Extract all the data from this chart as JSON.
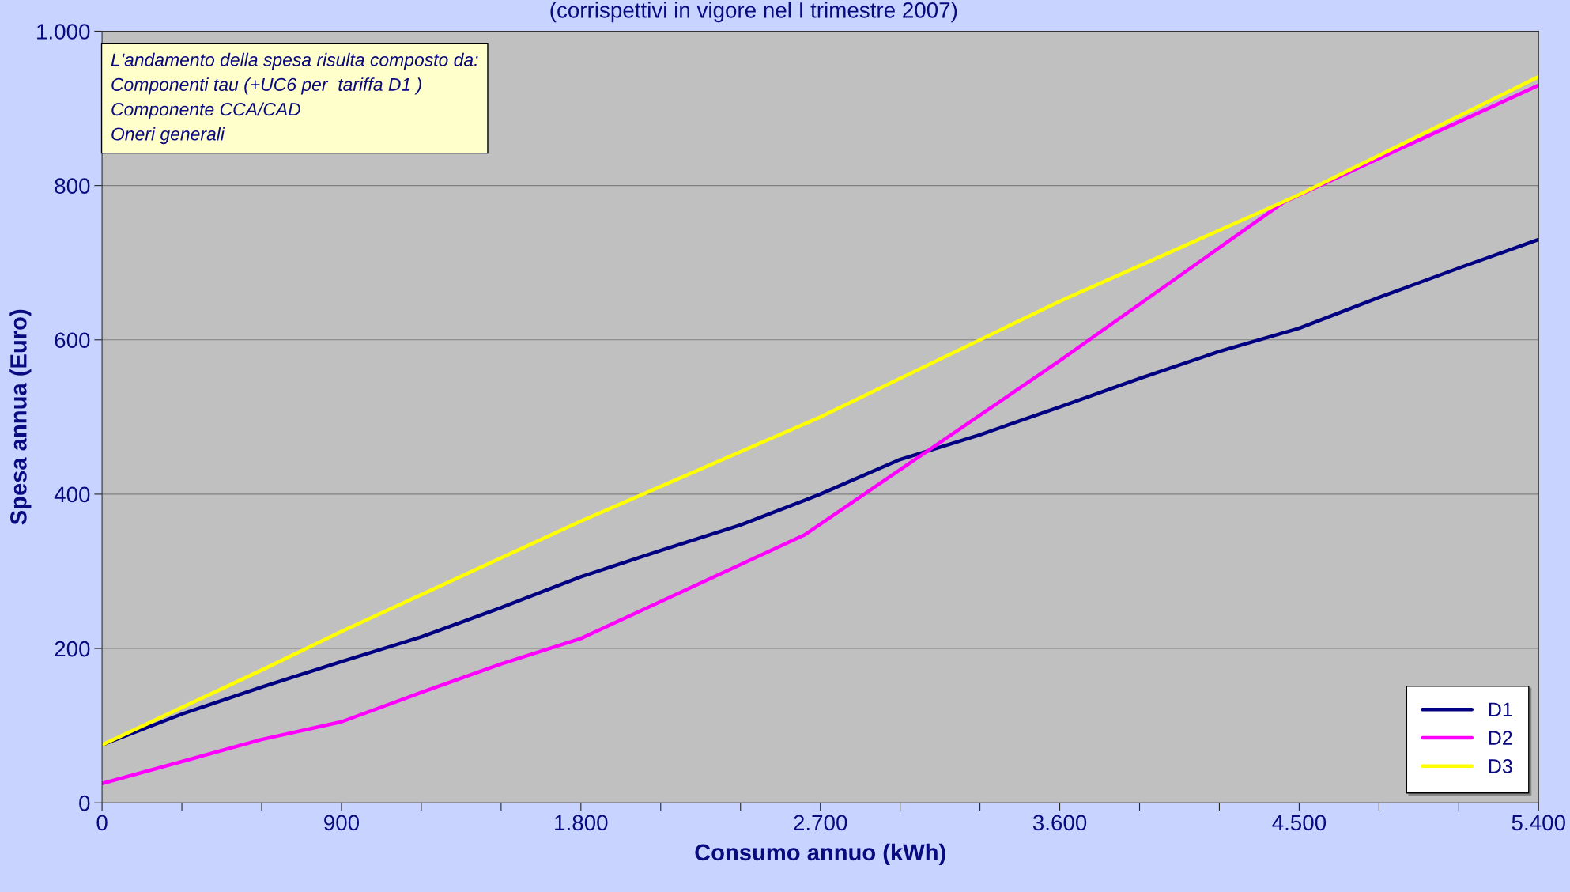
{
  "chart_data": {
    "type": "line",
    "subtitle": "(corrispettivi in vigore nel I trimestre 2007)",
    "xlabel": "Consumo annuo (kWh)",
    "ylabel": "Spesa annua (Euro)",
    "annotations": [
      "L'andamento della spesa risulta composto da:\nComponenti tau (+UC6 per  tariffa D1 )\nComponente CCA/CAD\nOneri generali"
    ],
    "series": [
      {
        "name": "D1",
        "color": "#000080",
        "x": [
          0,
          300,
          600,
          900,
          1200,
          1500,
          1800,
          2100,
          2400,
          2700,
          3000,
          3300,
          3600,
          3900,
          4200,
          4500,
          4800,
          5100,
          5400
        ],
        "values": [
          75,
          115,
          150,
          183,
          215,
          253,
          293,
          327,
          360,
          400,
          445,
          477,
          513,
          550,
          585,
          615,
          655,
          693,
          730
        ]
      },
      {
        "name": "D2",
        "color": "#ff00ff",
        "x": [
          0,
          600,
          900,
          1200,
          1500,
          1800,
          2640,
          3600,
          4440,
          5400
        ],
        "values": [
          25,
          82,
          105,
          143,
          180,
          213,
          347,
          573,
          778,
          930
        ]
      },
      {
        "name": "D3",
        "color": "#ffff00",
        "x": [
          0,
          600,
          900,
          1800,
          2700,
          3600,
          4500,
          5400
        ],
        "values": [
          75,
          172,
          222,
          365,
          500,
          650,
          788,
          941
        ]
      }
    ],
    "xlim": [
      0,
      5400
    ],
    "ylim": [
      0,
      1000
    ],
    "xticks": [
      0,
      {
        "value": 300,
        "label": null
      },
      {
        "value": 600,
        "label": null
      },
      900,
      {
        "value": 1200,
        "label": null
      },
      {
        "value": 1500,
        "label": null
      },
      {
        "value": 1800,
        "label": "1.800"
      },
      {
        "value": 2100,
        "label": null
      },
      {
        "value": 2400,
        "label": null
      },
      {
        "value": 2700,
        "label": "2.700"
      },
      {
        "value": 3000,
        "label": null
      },
      {
        "value": 3300,
        "label": null
      },
      {
        "value": 3600,
        "label": "3.600"
      },
      {
        "value": 3900,
        "label": null
      },
      {
        "value": 4200,
        "label": null
      },
      {
        "value": 4500,
        "label": "4.500"
      },
      {
        "value": 4800,
        "label": null
      },
      {
        "value": 5100,
        "label": null
      },
      {
        "value": 5400,
        "label": "5.400"
      }
    ],
    "yticks": [
      0,
      200,
      400,
      600,
      800,
      {
        "value": 1000,
        "label": "1.000"
      }
    ],
    "grid": "y",
    "legend": "bottom right",
    "line_style": "solid",
    "marker": "none"
  }
}
